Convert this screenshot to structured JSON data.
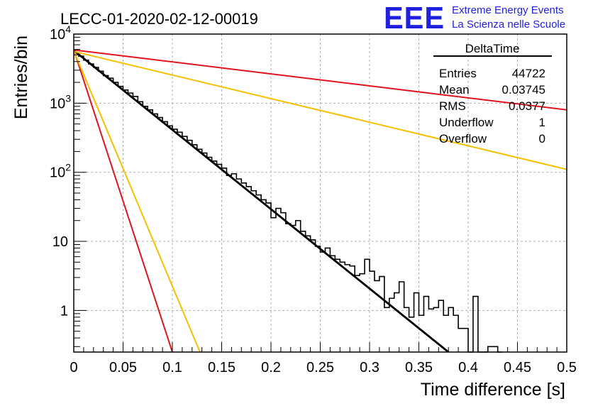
{
  "title": "LECC-01-2020-02-12-00019",
  "logo": {
    "mark": "EEE",
    "line1": "Extreme Energy Events",
    "line2": "La Scienza nelle Scuole",
    "color": "#1f1fe0"
  },
  "stats": {
    "header": "DeltaTime",
    "rows": [
      {
        "label": "Entries",
        "value": "44722"
      },
      {
        "label": "Mean",
        "value": "0.03745"
      },
      {
        "label": "RMS",
        "value": "0.0377"
      },
      {
        "label": "Underflow",
        "value": "1"
      },
      {
        "label": "Overflow",
        "value": "0"
      }
    ]
  },
  "chart_data": {
    "type": "histogram",
    "xlabel": "Time difference [s]",
    "ylabel": "Entries/bin",
    "xlim": [
      0,
      0.5
    ],
    "ylim": [
      0.25,
      10000
    ],
    "yscale": "log",
    "grid": true,
    "x_ticks": [
      "0",
      "0.05",
      "0.1",
      "0.15",
      "0.2",
      "0.25",
      "0.3",
      "0.35",
      "0.4",
      "0.45",
      "0.5"
    ],
    "y_ticks": [
      {
        "value": 1,
        "label": "1"
      },
      {
        "value": 10,
        "label": "10"
      },
      {
        "value": 100,
        "label": "10^2"
      },
      {
        "value": 1000,
        "label": "10^3"
      },
      {
        "value": 10000,
        "label": "10^4"
      }
    ],
    "histogram": {
      "bin_width": 0.005,
      "color": "#000000",
      "counts": [
        5400,
        4800,
        4200,
        3700,
        3300,
        2900,
        2500,
        2300,
        2000,
        1750,
        1550,
        1400,
        1250,
        1050,
        900,
        800,
        700,
        620,
        540,
        470,
        420,
        380,
        330,
        290,
        250,
        215,
        190,
        165,
        145,
        130,
        115,
        90,
        95,
        80,
        70,
        62,
        54,
        47,
        40,
        36,
        22,
        30,
        26,
        18,
        17,
        20,
        14,
        12,
        10.5,
        8.5,
        7,
        8,
        6.2,
        5.5,
        5,
        4.6,
        4.4,
        3.2,
        3.4,
        5.5,
        3.7,
        2.7,
        3.1,
        1.1,
        1.5,
        1.8,
        2.6,
        1.1,
        0.8,
        1.8,
        0.85,
        1.6,
        1.05,
        1.1,
        1.4,
        0.85,
        1.1,
        0.85,
        0.55,
        0.55,
        0.1,
        1.6,
        0.1,
        0.1,
        0.3,
        0.3,
        0.1
      ]
    },
    "series": [
      {
        "color": "#000000",
        "x": [
          0,
          0.38
        ],
        "y": [
          5800,
          0.25
        ]
      },
      {
        "color": "#e0141e",
        "x": [
          0,
          0.5
        ],
        "y": [
          5900,
          800
        ]
      },
      {
        "color": "#f5c000",
        "x": [
          0,
          0.5
        ],
        "y": [
          5600,
          110
        ]
      },
      {
        "color": "#e0141e",
        "x": [
          0,
          0.1
        ],
        "y": [
          5900,
          0.25
        ]
      },
      {
        "color": "#f5c000",
        "x": [
          0,
          0.128
        ],
        "y": [
          5700,
          0.25
        ]
      }
    ]
  }
}
